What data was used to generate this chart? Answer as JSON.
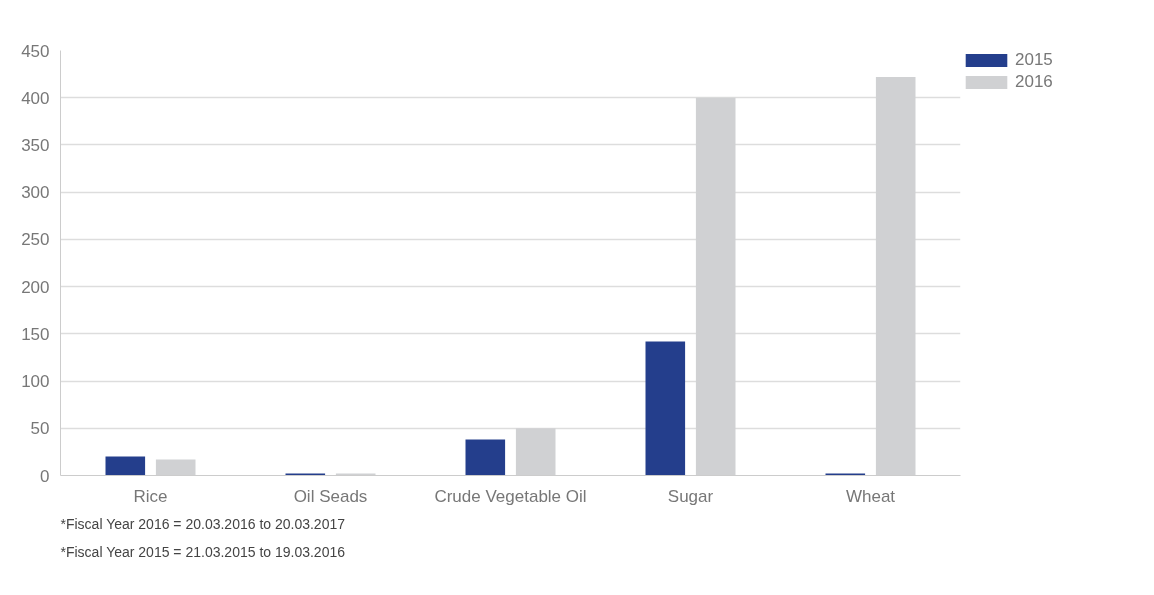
{
  "chart_data": {
    "type": "bar",
    "categories": [
      "Rice",
      "Oil Seads",
      "Crude Vegetable Oil",
      "Sugar",
      "Wheat"
    ],
    "series": [
      {
        "name": "2015",
        "color": "#243e8c",
        "values": [
          20,
          2,
          38,
          142,
          2
        ]
      },
      {
        "name": "2016",
        "color": "#d0d1d3",
        "values": [
          17,
          2,
          50,
          400,
          422
        ]
      }
    ],
    "ylim": [
      0,
      450
    ],
    "yticks": [
      0,
      50,
      100,
      150,
      200,
      250,
      300,
      350,
      400,
      450
    ],
    "grid": "y",
    "legend": "top right",
    "annotations": [
      "*Fiscal Year 2016 = 20.03.2016 to 20.03.2017",
      "*Fiscal Year 2015 = 21.03.2015 to 19.03.2016"
    ]
  }
}
